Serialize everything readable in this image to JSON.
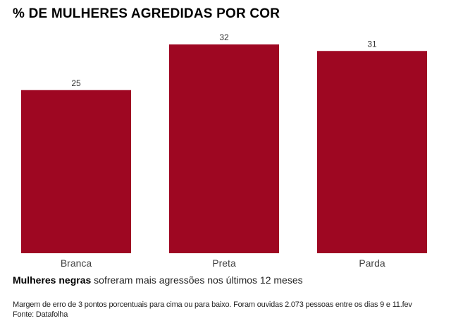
{
  "chart_data": {
    "type": "bar",
    "title": "% DE MULHERES AGREDIDAS POR COR",
    "categories": [
      "Branca",
      "Preta",
      "Parda"
    ],
    "values": [
      25,
      32,
      31
    ],
    "xlabel": "",
    "ylabel": "",
    "ylim": [
      0,
      32
    ],
    "grid": false,
    "bar_color": "#9e0722"
  },
  "subtitle": {
    "bold": "Mulheres negras",
    "rest": " sofreram mais agressões nos últimos 12 meses"
  },
  "note": "Margem de erro de 3 pontos porcentuais para cima ou para baixo. Foram ouvidas 2.073 pessoas entre os dias 9 e 11.fev",
  "source": "Fonte: Datafolha"
}
